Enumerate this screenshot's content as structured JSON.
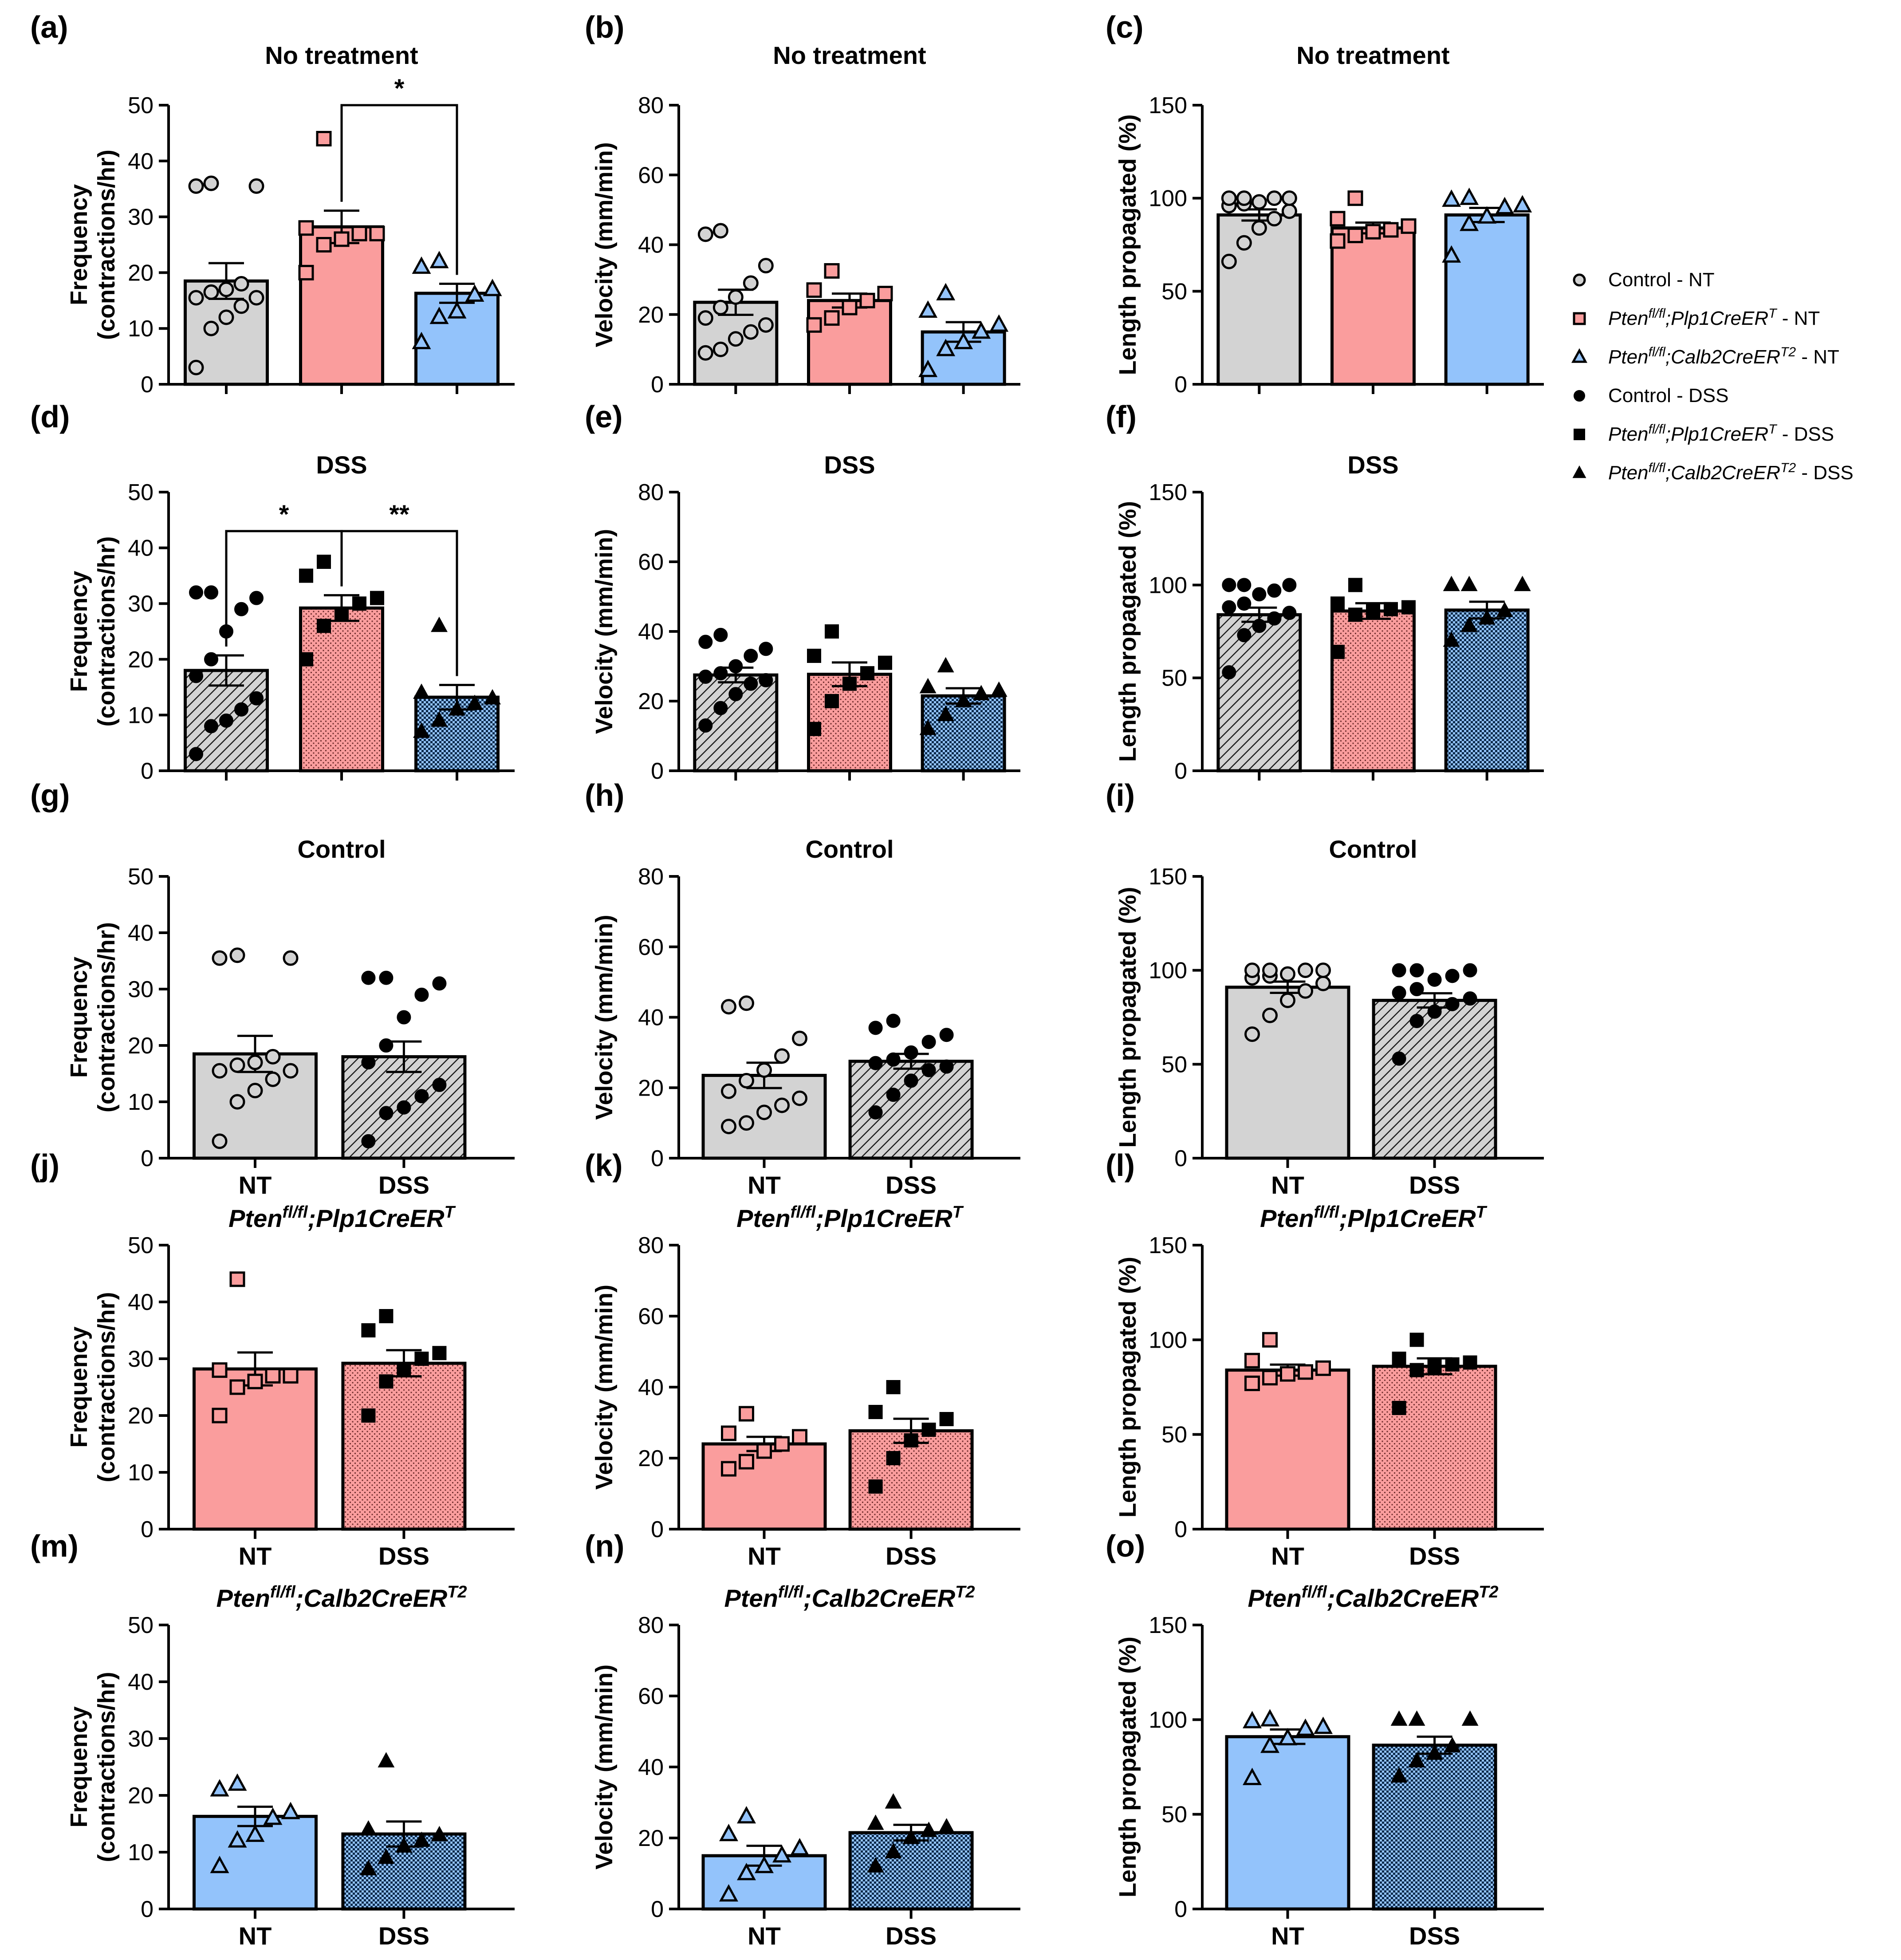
{
  "colors": {
    "control": "#d3d3d3",
    "plp1": "#fa9d9d",
    "calb2": "#93c3fb",
    "axis": "#000000"
  },
  "legend": {
    "items": [
      {
        "key": "control",
        "marker": "circle",
        "filled": false,
        "label": "Control - NT"
      },
      {
        "key": "plp1",
        "marker": "square",
        "filled": false,
        "label": "Pten{fl/fl};Plp1CreER{T} - NT"
      },
      {
        "key": "calb2",
        "marker": "triangle",
        "filled": false,
        "label": "Pten{fl/fl};Calb2CreER{T2} - NT"
      },
      {
        "key": "control",
        "marker": "circle",
        "filled": true,
        "label": "Control - DSS"
      },
      {
        "key": "plp1",
        "marker": "square",
        "filled": true,
        "label": "Pten{fl/fl};Plp1CreER{T} - DSS"
      },
      {
        "key": "calb2",
        "marker": "triangle",
        "filled": true,
        "label": "Pten{fl/fl};Calb2CreER{T2} - DSS"
      }
    ]
  },
  "chart_data": [
    {
      "panel": "(a)",
      "type": "bar",
      "title": "No treatment",
      "ylabel": [
        "Frequency",
        "(contractions/hr)"
      ],
      "ylim": [
        0,
        50
      ],
      "yticks": [
        0,
        10,
        20,
        30,
        40,
        50
      ],
      "categories": [],
      "bars": [
        {
          "group": "control",
          "treat": "NT",
          "mean": 18.5,
          "sem": 3.2,
          "points": [
            3,
            10,
            12,
            14,
            15.5,
            15.5,
            16.5,
            17,
            18,
            35.5,
            35.5,
            36
          ]
        },
        {
          "group": "plp1",
          "treat": "NT",
          "mean": 28.2,
          "sem": 2.9,
          "points": [
            20,
            25,
            26,
            27,
            27,
            28,
            44
          ]
        },
        {
          "group": "calb2",
          "treat": "NT",
          "mean": 16.3,
          "sem": 1.7,
          "points": [
            7.5,
            12,
            13,
            16,
            17,
            21,
            22
          ]
        }
      ],
      "sig": [
        {
          "from": 1,
          "to": 2,
          "label": "*",
          "y": 50
        }
      ]
    },
    {
      "panel": "(b)",
      "type": "bar",
      "title": "No treatment",
      "ylabel": [
        "Velocity (mm/min)"
      ],
      "ylim": [
        0,
        80
      ],
      "yticks": [
        0,
        20,
        40,
        60,
        80
      ],
      "categories": [],
      "bars": [
        {
          "group": "control",
          "treat": "NT",
          "mean": 23.5,
          "sem": 3.6,
          "points": [
            9,
            10,
            13,
            15,
            17,
            19,
            22,
            25,
            29,
            34,
            43,
            44
          ]
        },
        {
          "group": "plp1",
          "treat": "NT",
          "mean": 24,
          "sem": 2,
          "points": [
            17,
            19,
            22,
            24,
            26,
            27,
            32.5
          ]
        },
        {
          "group": "calb2",
          "treat": "NT",
          "mean": 15,
          "sem": 2.8,
          "points": [
            4,
            10,
            12,
            15,
            17,
            21,
            26
          ]
        }
      ],
      "sig": []
    },
    {
      "panel": "(c)",
      "type": "bar",
      "title": "No treatment",
      "ylabel": [
        "Length propagated (%)"
      ],
      "ylim": [
        0,
        150
      ],
      "yticks": [
        0,
        50,
        100,
        150
      ],
      "categories": [],
      "bars": [
        {
          "group": "control",
          "treat": "NT",
          "mean": 91,
          "sem": 3,
          "points": [
            66,
            76,
            84,
            89,
            93,
            96,
            97,
            98,
            100,
            100,
            100,
            100
          ]
        },
        {
          "group": "plp1",
          "treat": "NT",
          "mean": 84,
          "sem": 2.9,
          "points": [
            77,
            80,
            82,
            83,
            85,
            89,
            100
          ]
        },
        {
          "group": "calb2",
          "treat": "NT",
          "mean": 91,
          "sem": 3.8,
          "points": [
            69,
            86,
            90,
            95,
            96,
            99,
            100
          ]
        }
      ],
      "sig": []
    },
    {
      "panel": "(d)",
      "type": "bar",
      "title": "DSS",
      "ylabel": [
        "Frequency",
        "(contractions/hr)"
      ],
      "ylim": [
        0,
        50
      ],
      "yticks": [
        0,
        10,
        20,
        30,
        40,
        50
      ],
      "categories": [],
      "bars": [
        {
          "group": "control",
          "treat": "DSS",
          "mean": 18,
          "sem": 2.7,
          "points": [
            3,
            8,
            9,
            11,
            13,
            17,
            20,
            25,
            29,
            31,
            32,
            32
          ]
        },
        {
          "group": "plp1",
          "treat": "DSS",
          "mean": 29.2,
          "sem": 2.3,
          "points": [
            20,
            26,
            28,
            30,
            31,
            35,
            37.5
          ]
        },
        {
          "group": "calb2",
          "treat": "DSS",
          "mean": 13.2,
          "sem": 2.2,
          "points": [
            7,
            9,
            11,
            12,
            13,
            14,
            26
          ]
        }
      ],
      "sig": [
        {
          "from": 0,
          "to": 1,
          "label": "*",
          "y": 43
        },
        {
          "from": 1,
          "to": 2,
          "label": "**",
          "y": 43
        }
      ]
    },
    {
      "panel": "(e)",
      "type": "bar",
      "title": "DSS",
      "ylabel": [
        "Velocity (mm/min)"
      ],
      "ylim": [
        0,
        80
      ],
      "yticks": [
        0,
        20,
        40,
        60,
        80
      ],
      "categories": [],
      "bars": [
        {
          "group": "control",
          "treat": "DSS",
          "mean": 27.5,
          "sem": 2.1,
          "points": [
            13,
            18,
            22,
            25,
            26,
            27,
            28,
            30,
            33,
            35,
            37,
            39
          ]
        },
        {
          "group": "plp1",
          "treat": "DSS",
          "mean": 27.7,
          "sem": 3.4,
          "points": [
            12,
            20,
            25,
            28,
            31,
            33,
            40
          ]
        },
        {
          "group": "calb2",
          "treat": "DSS",
          "mean": 21.5,
          "sem": 2.2,
          "points": [
            12,
            16,
            20,
            22,
            23,
            24,
            30
          ]
        }
      ],
      "sig": []
    },
    {
      "panel": "(f)",
      "type": "bar",
      "title": "DSS",
      "ylabel": [
        "Length propagated (%)"
      ],
      "ylim": [
        0,
        150
      ],
      "yticks": [
        0,
        50,
        100,
        150
      ],
      "categories": [],
      "bars": [
        {
          "group": "control",
          "treat": "DSS",
          "mean": 84,
          "sem": 3.8,
          "points": [
            53,
            73,
            78,
            82,
            85,
            88,
            90,
            95,
            97,
            100,
            100,
            100
          ]
        },
        {
          "group": "plp1",
          "treat": "DSS",
          "mean": 86,
          "sem": 4.2,
          "points": [
            64,
            84,
            86,
            87,
            88,
            90,
            100
          ]
        },
        {
          "group": "calb2",
          "treat": "DSS",
          "mean": 86.5,
          "sem": 4.5,
          "points": [
            70,
            78,
            82,
            86,
            100,
            100,
            100
          ]
        }
      ],
      "sig": []
    },
    {
      "panel": "(g)",
      "type": "bar",
      "title": "Control",
      "ylabel": [
        "Frequency",
        "(contractions/hr)"
      ],
      "ylim": [
        0,
        50
      ],
      "yticks": [
        0,
        10,
        20,
        30,
        40,
        50
      ],
      "categories": [
        "NT",
        "DSS"
      ],
      "bars": [
        {
          "group": "control",
          "treat": "NT",
          "mean": 18.5,
          "sem": 3.2,
          "points": [
            3,
            10,
            12,
            14,
            15.5,
            15.5,
            16.5,
            17,
            18,
            35.5,
            35.5,
            36
          ]
        },
        {
          "group": "control",
          "treat": "DSS",
          "mean": 18,
          "sem": 2.7,
          "points": [
            3,
            8,
            9,
            11,
            13,
            17,
            20,
            25,
            29,
            31,
            32,
            32
          ]
        }
      ],
      "sig": []
    },
    {
      "panel": "(h)",
      "type": "bar",
      "title": "Control",
      "ylabel": [
        "Velocity (mm/min)"
      ],
      "ylim": [
        0,
        80
      ],
      "yticks": [
        0,
        20,
        40,
        60,
        80
      ],
      "categories": [
        "NT",
        "DSS"
      ],
      "bars": [
        {
          "group": "control",
          "treat": "NT",
          "mean": 23.5,
          "sem": 3.6,
          "points": [
            9,
            10,
            13,
            15,
            17,
            19,
            22,
            25,
            29,
            34,
            43,
            44
          ]
        },
        {
          "group": "control",
          "treat": "DSS",
          "mean": 27.5,
          "sem": 2.1,
          "points": [
            13,
            18,
            22,
            25,
            26,
            27,
            28,
            30,
            33,
            35,
            37,
            39
          ]
        }
      ],
      "sig": []
    },
    {
      "panel": "(i)",
      "type": "bar",
      "title": "Control",
      "ylabel": [
        "Length propagated (%)"
      ],
      "ylim": [
        0,
        150
      ],
      "yticks": [
        0,
        50,
        100,
        150
      ],
      "categories": [
        "NT",
        "DSS"
      ],
      "bars": [
        {
          "group": "control",
          "treat": "NT",
          "mean": 91,
          "sem": 3,
          "points": [
            66,
            76,
            84,
            89,
            93,
            96,
            97,
            98,
            100,
            100,
            100,
            100
          ]
        },
        {
          "group": "control",
          "treat": "DSS",
          "mean": 84,
          "sem": 3.8,
          "points": [
            53,
            73,
            78,
            82,
            85,
            88,
            90,
            95,
            97,
            100,
            100,
            100
          ]
        }
      ],
      "sig": []
    },
    {
      "panel": "(j)",
      "type": "bar",
      "title": "Pten{fl/fl};Plp1CreER{T}",
      "ylabel": [
        "Frequency",
        "(contractions/hr)"
      ],
      "ylim": [
        0,
        50
      ],
      "yticks": [
        0,
        10,
        20,
        30,
        40,
        50
      ],
      "categories": [
        "NT",
        "DSS"
      ],
      "bars": [
        {
          "group": "plp1",
          "treat": "NT",
          "mean": 28.2,
          "sem": 2.9,
          "points": [
            20,
            25,
            26,
            27,
            27,
            28,
            44
          ]
        },
        {
          "group": "plp1",
          "treat": "DSS",
          "mean": 29.2,
          "sem": 2.3,
          "points": [
            20,
            26,
            28,
            30,
            31,
            35,
            37.5
          ]
        }
      ],
      "sig": []
    },
    {
      "panel": "(k)",
      "type": "bar",
      "title": "Pten{fl/fl};Plp1CreER{T}",
      "ylabel": [
        "Velocity (mm/min)"
      ],
      "ylim": [
        0,
        80
      ],
      "yticks": [
        0,
        20,
        40,
        60,
        80
      ],
      "categories": [
        "NT",
        "DSS"
      ],
      "bars": [
        {
          "group": "plp1",
          "treat": "NT",
          "mean": 24,
          "sem": 2,
          "points": [
            17,
            19,
            22,
            24,
            26,
            27,
            32.5
          ]
        },
        {
          "group": "plp1",
          "treat": "DSS",
          "mean": 27.7,
          "sem": 3.4,
          "points": [
            12,
            20,
            25,
            28,
            31,
            33,
            40
          ]
        }
      ],
      "sig": []
    },
    {
      "panel": "(l)",
      "type": "bar",
      "title": "Pten{fl/fl};Plp1CreER{T}",
      "ylabel": [
        "Length propagated (%)"
      ],
      "ylim": [
        0,
        150
      ],
      "yticks": [
        0,
        50,
        100,
        150
      ],
      "categories": [
        "NT",
        "DSS"
      ],
      "bars": [
        {
          "group": "plp1",
          "treat": "NT",
          "mean": 84,
          "sem": 2.9,
          "points": [
            77,
            80,
            82,
            83,
            85,
            89,
            100
          ]
        },
        {
          "group": "plp1",
          "treat": "DSS",
          "mean": 86,
          "sem": 4.2,
          "points": [
            64,
            84,
            86,
            87,
            88,
            90,
            100
          ]
        }
      ],
      "sig": []
    },
    {
      "panel": "(m)",
      "type": "bar",
      "title": "Pten{fl/fl};Calb2CreER{T2}",
      "ylabel": [
        "Frequency",
        "(contractions/hr)"
      ],
      "ylim": [
        0,
        50
      ],
      "yticks": [
        0,
        10,
        20,
        30,
        40,
        50
      ],
      "categories": [
        "NT",
        "DSS"
      ],
      "bars": [
        {
          "group": "calb2",
          "treat": "NT",
          "mean": 16.3,
          "sem": 1.7,
          "points": [
            7.5,
            12,
            13,
            16,
            17,
            21,
            22
          ]
        },
        {
          "group": "calb2",
          "treat": "DSS",
          "mean": 13.2,
          "sem": 2.2,
          "points": [
            7,
            9,
            11,
            12,
            13,
            14,
            26
          ]
        }
      ],
      "sig": []
    },
    {
      "panel": "(n)",
      "type": "bar",
      "title": "Pten{fl/fl};Calb2CreER{T2}",
      "ylabel": [
        "Velocity (mm/min)"
      ],
      "ylim": [
        0,
        80
      ],
      "yticks": [
        0,
        20,
        40,
        60,
        80
      ],
      "categories": [
        "NT",
        "DSS"
      ],
      "bars": [
        {
          "group": "calb2",
          "treat": "NT",
          "mean": 15,
          "sem": 2.8,
          "points": [
            4,
            10,
            12,
            15,
            17,
            21,
            26
          ]
        },
        {
          "group": "calb2",
          "treat": "DSS",
          "mean": 21.5,
          "sem": 2.2,
          "points": [
            12,
            16,
            20,
            22,
            23,
            24,
            30
          ]
        }
      ],
      "sig": []
    },
    {
      "panel": "(o)",
      "type": "bar",
      "title": "Pten{fl/fl};Calb2CreER{T2}",
      "ylabel": [
        "Length propagated (%)"
      ],
      "ylim": [
        0,
        150
      ],
      "yticks": [
        0,
        50,
        100,
        150
      ],
      "categories": [
        "NT",
        "DSS"
      ],
      "bars": [
        {
          "group": "calb2",
          "treat": "NT",
          "mean": 91,
          "sem": 3.8,
          "points": [
            69,
            86,
            90,
            95,
            96,
            99,
            100
          ]
        },
        {
          "group": "calb2",
          "treat": "DSS",
          "mean": 86.5,
          "sem": 4.5,
          "points": [
            70,
            78,
            82,
            86,
            100,
            100,
            100
          ]
        }
      ],
      "sig": []
    }
  ]
}
